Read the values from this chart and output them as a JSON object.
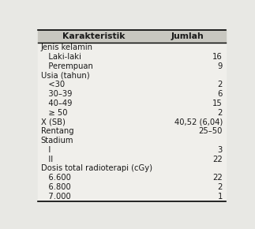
{
  "col1_header": "Karakteristik",
  "col2_header": "Jumlah",
  "rows": [
    {
      "label": "Jenis kelamin",
      "value": "",
      "indent": 0
    },
    {
      "label": "   Laki-laki",
      "value": "16",
      "indent": 1
    },
    {
      "label": "   Perempuan",
      "value": "9",
      "indent": 1
    },
    {
      "label": "Usia (tahun)",
      "value": "",
      "indent": 0
    },
    {
      "label": "   <30",
      "value": "2",
      "indent": 1
    },
    {
      "label": "   30–39",
      "value": "6",
      "indent": 1
    },
    {
      "label": "   40–49",
      "value": "15",
      "indent": 1
    },
    {
      "label": "   ≥ 50",
      "value": "2",
      "indent": 1
    },
    {
      "label": "X (SB)",
      "value": "40,52 (6,04)",
      "indent": 0
    },
    {
      "label": "Rentang",
      "value": "25–50",
      "indent": 0
    },
    {
      "label": "Stadium",
      "value": "",
      "indent": 0
    },
    {
      "label": "   I",
      "value": "3",
      "indent": 1
    },
    {
      "label": "   II",
      "value": "22",
      "indent": 1
    },
    {
      "label": "Dosis total radioterapi (cGy)",
      "value": "",
      "indent": 0
    },
    {
      "label": "   6.600",
      "value": "22",
      "indent": 1
    },
    {
      "label": "   6.800",
      "value": "2",
      "indent": 1
    },
    {
      "label": "   7.000",
      "value": "1",
      "indent": 1
    }
  ],
  "bg_color": "#e8e8e4",
  "table_bg": "#f0efeb",
  "header_bg": "#c8c7c0",
  "text_color": "#1a1a1a",
  "font_size": 7.2,
  "header_font_size": 7.8,
  "fig_width": 3.23,
  "fig_height": 2.9,
  "dpi": 100
}
